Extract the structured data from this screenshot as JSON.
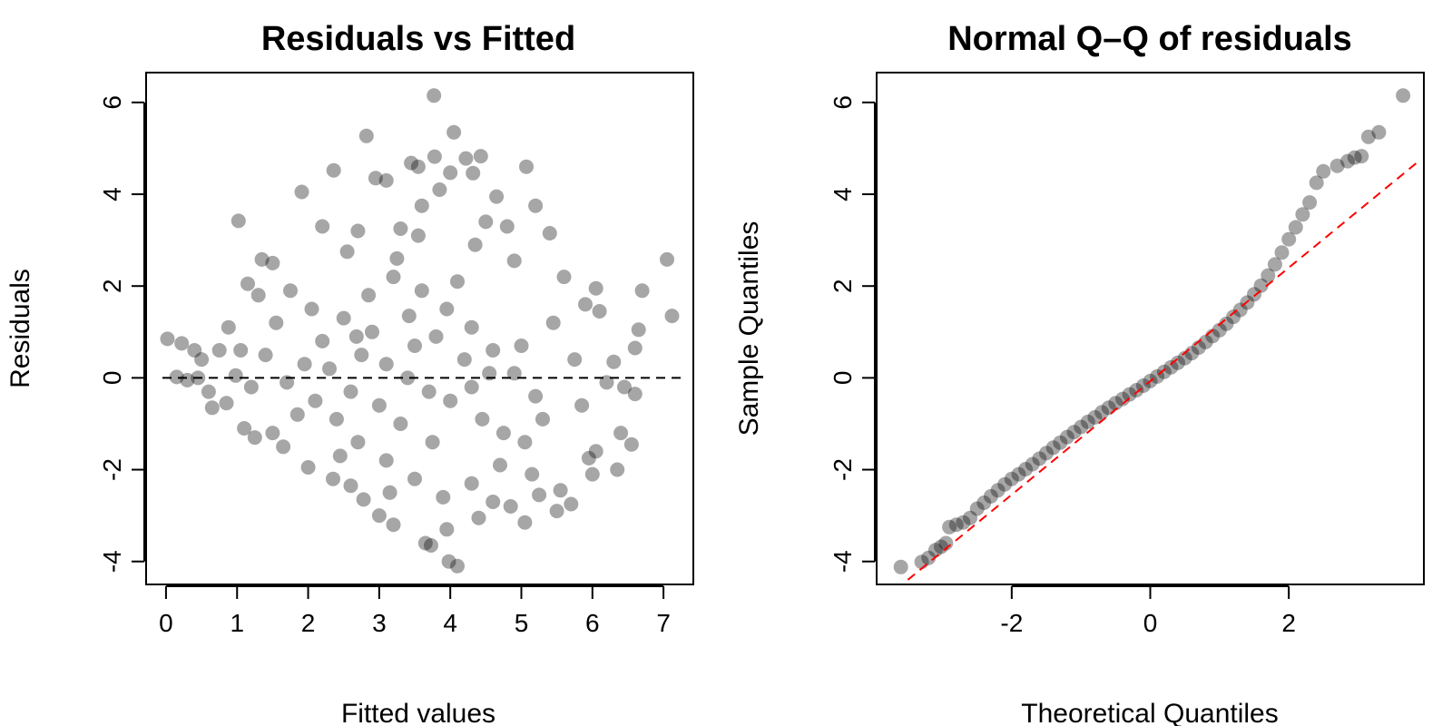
{
  "chart_data": [
    {
      "type": "scatter",
      "title": "Residuals vs Fitted",
      "xlabel": "Fitted values",
      "ylabel": "Residuals",
      "xlim": [
        -0.28,
        7.42
      ],
      "ylim": [
        -4.5,
        6.65
      ],
      "xticks": [
        0,
        1,
        2,
        3,
        4,
        5,
        6,
        7
      ],
      "yticks": [
        -4,
        -2,
        0,
        2,
        4,
        6
      ],
      "grid": false,
      "reference_line": {
        "type": "horizontal",
        "y": 0,
        "style": "dashed",
        "color": "#000000"
      },
      "point_color": "#000000",
      "point_opacity": 0.35,
      "n_points_estimated": 2000,
      "points": [
        [
          3.77,
          6.15
        ],
        [
          4.05,
          5.35
        ],
        [
          2.82,
          5.27
        ],
        [
          3.45,
          4.68
        ],
        [
          3.78,
          4.82
        ],
        [
          4.43,
          4.83
        ],
        [
          4.22,
          4.78
        ],
        [
          2.36,
          4.52
        ],
        [
          3.55,
          4.6
        ],
        [
          5.07,
          4.6
        ],
        [
          4.0,
          4.47
        ],
        [
          1.91,
          4.05
        ],
        [
          2.95,
          4.35
        ],
        [
          3.1,
          4.3
        ],
        [
          4.32,
          4.46
        ],
        [
          3.85,
          4.1
        ],
        [
          4.65,
          3.95
        ],
        [
          5.2,
          3.75
        ],
        [
          1.02,
          3.42
        ],
        [
          3.6,
          3.75
        ],
        [
          4.5,
          3.4
        ],
        [
          2.2,
          3.3
        ],
        [
          2.7,
          3.2
        ],
        [
          3.3,
          3.25
        ],
        [
          5.4,
          3.15
        ],
        [
          4.8,
          3.3
        ],
        [
          1.35,
          2.58
        ],
        [
          1.5,
          2.5
        ],
        [
          2.55,
          2.75
        ],
        [
          4.9,
          2.55
        ],
        [
          5.6,
          2.2
        ],
        [
          7.05,
          2.58
        ],
        [
          1.15,
          2.05
        ],
        [
          1.3,
          1.8
        ],
        [
          1.75,
          1.9
        ],
        [
          6.05,
          1.95
        ],
        [
          6.1,
          1.45
        ],
        [
          5.9,
          1.6
        ],
        [
          6.7,
          1.9
        ],
        [
          7.12,
          1.35
        ],
        [
          6.65,
          1.05
        ],
        [
          0.88,
          1.1
        ],
        [
          1.05,
          0.6
        ],
        [
          0.75,
          0.6
        ],
        [
          0.02,
          0.85
        ],
        [
          0.22,
          0.75
        ],
        [
          0.5,
          0.4
        ],
        [
          0.4,
          0.6
        ],
        [
          0.15,
          0.02
        ],
        [
          0.3,
          -0.05
        ],
        [
          0.45,
          0.0
        ],
        [
          0.6,
          -0.3
        ],
        [
          0.65,
          -0.65
        ],
        [
          0.85,
          -0.55
        ],
        [
          1.1,
          -1.1
        ],
        [
          1.25,
          -1.3
        ],
        [
          6.3,
          0.35
        ],
        [
          6.6,
          0.65
        ],
        [
          6.45,
          -0.2
        ],
        [
          6.6,
          -0.35
        ],
        [
          6.2,
          -0.1
        ],
        [
          6.4,
          -1.2
        ],
        [
          6.55,
          -1.45
        ],
        [
          6.05,
          -1.6
        ],
        [
          6.0,
          -2.1
        ],
        [
          6.35,
          -2.0
        ],
        [
          5.95,
          -1.75
        ],
        [
          5.55,
          -2.45
        ],
        [
          5.5,
          -2.9
        ],
        [
          5.7,
          -2.75
        ],
        [
          5.05,
          -3.15
        ],
        [
          5.25,
          -2.55
        ],
        [
          4.85,
          -2.8
        ],
        [
          4.4,
          -3.05
        ],
        [
          4.1,
          -4.1
        ],
        [
          3.98,
          -4.0
        ],
        [
          3.73,
          -3.65
        ],
        [
          3.65,
          -3.6
        ],
        [
          3.95,
          -3.3
        ],
        [
          3.2,
          -3.2
        ],
        [
          3.0,
          -3.0
        ],
        [
          2.78,
          -2.65
        ],
        [
          2.6,
          -2.35
        ],
        [
          2.0,
          -1.95
        ],
        [
          1.65,
          -1.5
        ],
        [
          1.5,
          -1.2
        ],
        [
          1.85,
          -0.8
        ],
        [
          2.1,
          -0.5
        ],
        [
          2.4,
          -0.9
        ],
        [
          2.7,
          -1.4
        ],
        [
          3.1,
          -1.8
        ],
        [
          3.5,
          -2.2
        ],
        [
          3.9,
          -2.6
        ],
        [
          4.3,
          -2.3
        ],
        [
          4.7,
          -1.9
        ],
        [
          5.05,
          -1.4
        ],
        [
          5.3,
          -0.9
        ],
        [
          5.2,
          -0.4
        ],
        [
          4.9,
          0.1
        ],
        [
          4.6,
          0.6
        ],
        [
          4.3,
          1.1
        ],
        [
          3.95,
          1.5
        ],
        [
          3.6,
          1.9
        ],
        [
          3.2,
          2.2
        ],
        [
          2.85,
          1.8
        ],
        [
          2.5,
          1.3
        ],
        [
          2.2,
          0.8
        ],
        [
          1.95,
          0.3
        ],
        [
          1.7,
          -0.1
        ],
        [
          2.3,
          0.2
        ],
        [
          2.75,
          0.5
        ],
        [
          3.1,
          0.3
        ],
        [
          3.4,
          0.0
        ],
        [
          3.7,
          -0.3
        ],
        [
          4.0,
          -0.5
        ],
        [
          4.3,
          -0.2
        ],
        [
          4.55,
          0.1
        ],
        [
          3.5,
          0.7
        ],
        [
          3.0,
          -0.6
        ],
        [
          2.6,
          -0.3
        ],
        [
          3.8,
          0.9
        ],
        [
          4.2,
          0.4
        ],
        [
          3.3,
          -1.0
        ],
        [
          2.9,
          1.0
        ],
        [
          4.45,
          -0.9
        ],
        [
          5.0,
          0.7
        ],
        [
          3.75,
          -1.4
        ],
        [
          2.45,
          -1.7
        ],
        [
          4.1,
          2.1
        ],
        [
          3.25,
          2.6
        ],
        [
          2.05,
          1.5
        ],
        [
          5.45,
          1.2
        ],
        [
          5.15,
          -2.1
        ],
        [
          1.4,
          0.5
        ],
        [
          1.2,
          -0.2
        ],
        [
          0.98,
          0.05
        ],
        [
          1.55,
          1.2
        ],
        [
          5.75,
          0.4
        ],
        [
          5.85,
          -0.6
        ],
        [
          4.75,
          -1.2
        ],
        [
          3.55,
          3.1
        ],
        [
          4.35,
          2.9
        ],
        [
          2.35,
          -2.2
        ],
        [
          3.15,
          -2.5
        ],
        [
          4.6,
          -2.7
        ],
        [
          3.42,
          1.35
        ],
        [
          2.68,
          0.9
        ]
      ]
    },
    {
      "type": "scatter",
      "title": "Normal Q–Q of residuals",
      "xlabel": "Theoretical Quantiles",
      "ylabel": "Sample Quantiles",
      "xlim": [
        -3.95,
        3.95
      ],
      "ylim": [
        -4.5,
        6.65
      ],
      "xticks": [
        -2,
        0,
        2
      ],
      "yticks": [
        -4,
        -2,
        0,
        2,
        4,
        6
      ],
      "grid": false,
      "reference_line": {
        "type": "qq-line",
        "points": [
          [
            -3.5,
            -4.4
          ],
          [
            3.9,
            4.75
          ]
        ],
        "style": "dashed",
        "color": "#ff0000"
      },
      "point_color": "#000000",
      "point_opacity": 0.35,
      "points": [
        [
          -3.6,
          -4.12
        ],
        [
          -3.3,
          -4.01
        ],
        [
          -3.2,
          -3.92
        ],
        [
          -3.1,
          -3.75
        ],
        [
          -3.02,
          -3.68
        ],
        [
          -2.95,
          -3.6
        ],
        [
          -2.9,
          -3.25
        ],
        [
          -2.8,
          -3.2
        ],
        [
          -2.7,
          -3.15
        ],
        [
          -2.6,
          -3.05
        ],
        [
          -2.5,
          -2.85
        ],
        [
          -2.4,
          -2.72
        ],
        [
          -2.3,
          -2.58
        ],
        [
          -2.2,
          -2.45
        ],
        [
          -2.1,
          -2.32
        ],
        [
          -2.0,
          -2.2
        ],
        [
          -1.9,
          -2.1
        ],
        [
          -1.8,
          -1.99
        ],
        [
          -1.7,
          -1.88
        ],
        [
          -1.6,
          -1.76
        ],
        [
          -1.5,
          -1.64
        ],
        [
          -1.4,
          -1.52
        ],
        [
          -1.3,
          -1.41
        ],
        [
          -1.2,
          -1.29
        ],
        [
          -1.1,
          -1.18
        ],
        [
          -1.0,
          -1.07
        ],
        [
          -0.9,
          -0.96
        ],
        [
          -0.8,
          -0.86
        ],
        [
          -0.7,
          -0.75
        ],
        [
          -0.6,
          -0.65
        ],
        [
          -0.5,
          -0.55
        ],
        [
          -0.4,
          -0.46
        ],
        [
          -0.3,
          -0.36
        ],
        [
          -0.2,
          -0.27
        ],
        [
          -0.1,
          -0.17
        ],
        [
          0.0,
          -0.07
        ],
        [
          0.1,
          0.03
        ],
        [
          0.2,
          0.13
        ],
        [
          0.3,
          0.23
        ],
        [
          0.4,
          0.33
        ],
        [
          0.5,
          0.43
        ],
        [
          0.6,
          0.54
        ],
        [
          0.7,
          0.66
        ],
        [
          0.8,
          0.78
        ],
        [
          0.9,
          0.91
        ],
        [
          1.0,
          1.04
        ],
        [
          1.1,
          1.18
        ],
        [
          1.2,
          1.33
        ],
        [
          1.3,
          1.48
        ],
        [
          1.4,
          1.64
        ],
        [
          1.5,
          1.82
        ],
        [
          1.6,
          2.01
        ],
        [
          1.7,
          2.23
        ],
        [
          1.8,
          2.47
        ],
        [
          1.9,
          2.73
        ],
        [
          2.0,
          3.02
        ],
        [
          2.1,
          3.28
        ],
        [
          2.2,
          3.56
        ],
        [
          2.3,
          3.82
        ],
        [
          2.4,
          4.25
        ],
        [
          2.5,
          4.5
        ],
        [
          2.7,
          4.62
        ],
        [
          2.85,
          4.72
        ],
        [
          2.95,
          4.8
        ],
        [
          3.05,
          4.83
        ],
        [
          3.15,
          5.25
        ],
        [
          3.3,
          5.35
        ],
        [
          3.65,
          6.15
        ]
      ]
    }
  ]
}
